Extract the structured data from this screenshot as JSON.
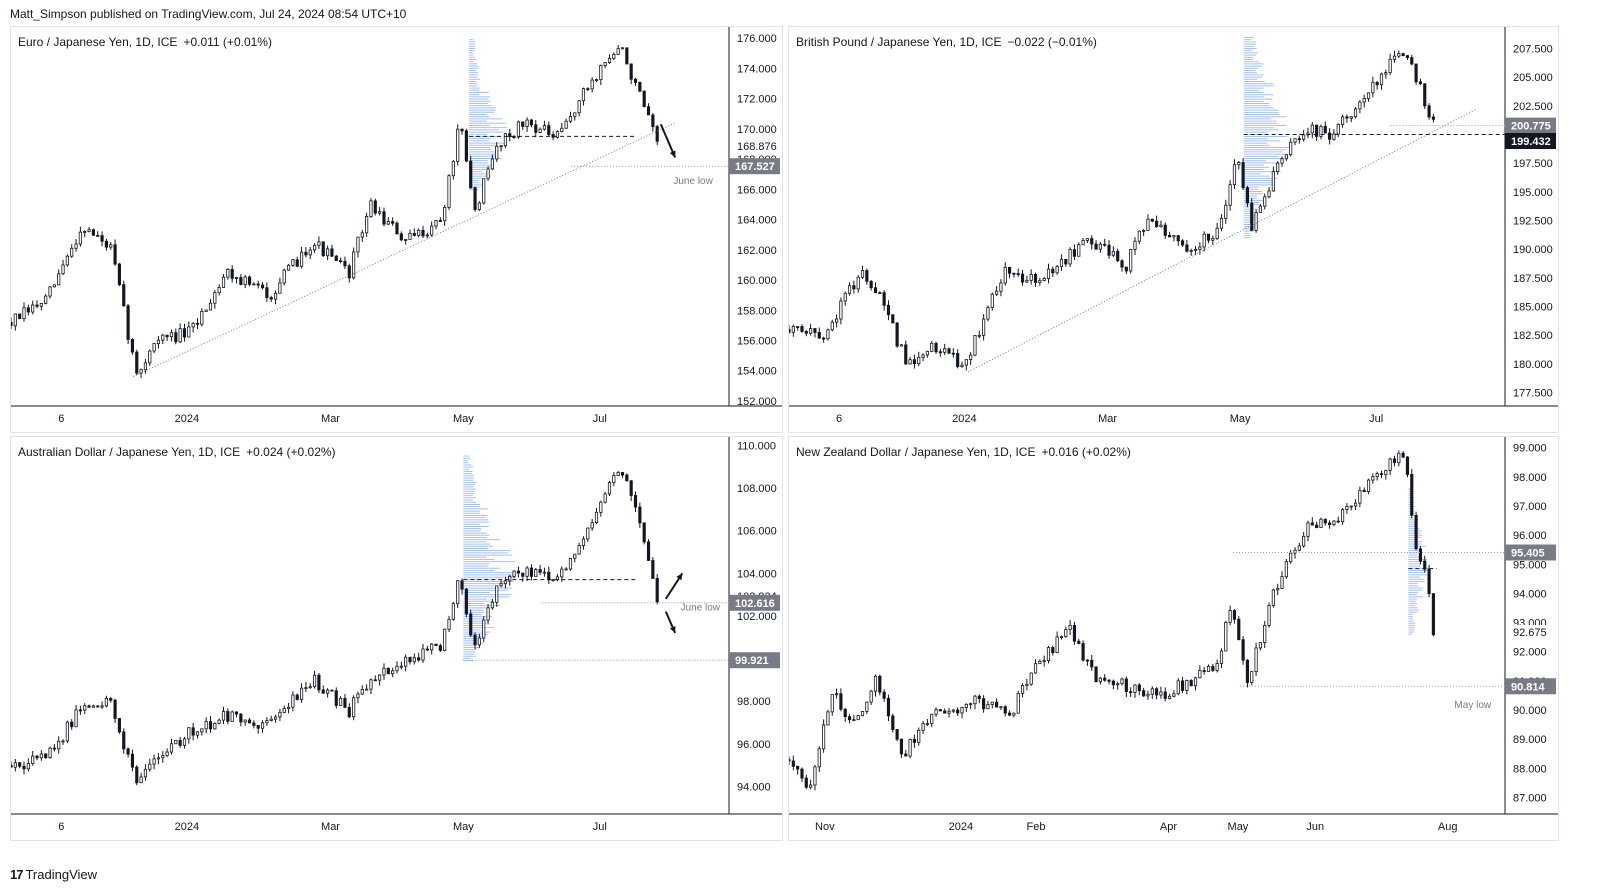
{
  "header": {
    "publisher_line": "Matt_Simpson published on TradingView.com, Jul 24, 2024 08:54 UTC+10"
  },
  "footer": {
    "brand": "TradingView",
    "logo_glyph": "17"
  },
  "colors": {
    "candle": "#131722",
    "volume_profile": "#5b8def",
    "axis_line": "#131722",
    "label_bg_gray": "#787b86",
    "label_bg_black": "#131722",
    "annotation_text": "#787b86"
  },
  "chart_data": [
    {
      "id": "eurjpy",
      "type": "candlestick",
      "title": "Euro / Japanese Yen, 1D, ICE",
      "change": "+0.011 (+0.01%)",
      "ylim": [
        151.8,
        176.6
      ],
      "y_ticks": [
        "176.000",
        "174.000",
        "172.000",
        "170.000",
        "168.000",
        "166.000",
        "164.000",
        "162.000",
        "160.000",
        "158.000",
        "156.000",
        "154.000",
        "152.000"
      ],
      "x_ticks": [
        {
          "label": "6",
          "t": 0.07
        },
        {
          "label": "2024",
          "t": 0.245
        },
        {
          "label": "Mar",
          "t": 0.445
        },
        {
          "label": "May",
          "t": 0.63
        },
        {
          "label": "Jul",
          "t": 0.82
        }
      ],
      "series_path": [
        [
          0,
          157.2
        ],
        [
          0.05,
          158.7
        ],
        [
          0.1,
          163.6
        ],
        [
          0.14,
          162.0
        ],
        [
          0.175,
          153.6
        ],
        [
          0.2,
          156.0
        ],
        [
          0.25,
          156.5
        ],
        [
          0.3,
          160.6
        ],
        [
          0.36,
          159.0
        ],
        [
          0.42,
          162.6
        ],
        [
          0.47,
          160.4
        ],
        [
          0.5,
          165.0
        ],
        [
          0.55,
          162.5
        ],
        [
          0.6,
          164.0
        ],
        [
          0.625,
          170.4
        ],
        [
          0.645,
          164.5
        ],
        [
          0.68,
          169.2
        ],
        [
          0.72,
          170.5
        ],
        [
          0.76,
          169.3
        ],
        [
          0.8,
          172.5
        ],
        [
          0.83,
          174.6
        ],
        [
          0.85,
          175.3
        ],
        [
          0.88,
          171.6
        ],
        [
          0.9,
          168.9
        ]
      ],
      "volume_profile": {
        "price_from": 166.0,
        "price_to": 176.0,
        "peak_price": 169.5,
        "t": 0.638,
        "max_width": 0.055
      },
      "trendline": {
        "from": [
          0.17,
          153.6
        ],
        "to": [
          0.925,
          170.4
        ]
      },
      "poc_line": {
        "price": 169.5,
        "t_from": 0.638,
        "t_to": 0.87
      },
      "level_lines": [
        {
          "price": 167.527,
          "t_from": 0.78,
          "t_to": 1.0,
          "style": "dotted"
        }
      ],
      "arrows": [
        {
          "from": [
            0.905,
            170.3
          ],
          "to": [
            0.925,
            168.1
          ]
        }
      ],
      "annotations": [
        {
          "text": "June low",
          "t": 0.95,
          "price": 166.6
        }
      ],
      "price_labels": [
        {
          "text": "168.876",
          "price": 168.876,
          "style": "plain"
        },
        {
          "text": "167.527",
          "price": 167.527,
          "style": "gray"
        }
      ]
    },
    {
      "id": "gbpjpy",
      "type": "candlestick",
      "title": "British Pound / Japanese Yen, 1D, ICE",
      "change": "−0.022 (−0.01%)",
      "ylim": [
        176.5,
        209.2
      ],
      "y_ticks": [
        "207.500",
        "205.000",
        "202.500",
        "200.000",
        "197.500",
        "195.000",
        "192.500",
        "190.000",
        "187.500",
        "185.000",
        "182.500",
        "180.000",
        "177.500"
      ],
      "x_ticks": [
        {
          "label": "6",
          "t": 0.07
        },
        {
          "label": "2024",
          "t": 0.245
        },
        {
          "label": "Mar",
          "t": 0.445
        },
        {
          "label": "May",
          "t": 0.63
        },
        {
          "label": "Jul",
          "t": 0.82
        }
      ],
      "series_path": [
        [
          0,
          183.0
        ],
        [
          0.05,
          182.5
        ],
        [
          0.08,
          186.0
        ],
        [
          0.1,
          188.0
        ],
        [
          0.13,
          185.5
        ],
        [
          0.165,
          179.8
        ],
        [
          0.2,
          181.5
        ],
        [
          0.245,
          180.0
        ],
        [
          0.3,
          188.0
        ],
        [
          0.35,
          187.0
        ],
        [
          0.42,
          191.0
        ],
        [
          0.47,
          188.5
        ],
        [
          0.5,
          192.5
        ],
        [
          0.55,
          190.0
        ],
        [
          0.6,
          191.5
        ],
        [
          0.625,
          198.5
        ],
        [
          0.645,
          192.0
        ],
        [
          0.68,
          197.0
        ],
        [
          0.72,
          200.5
        ],
        [
          0.76,
          200.0
        ],
        [
          0.8,
          203.0
        ],
        [
          0.84,
          206.5
        ],
        [
          0.86,
          207.5
        ],
        [
          0.885,
          203.5
        ],
        [
          0.9,
          200.8
        ]
      ],
      "volume_profile": {
        "price_from": 191.0,
        "price_to": 208.5,
        "peak_price": 200.0,
        "t": 0.635,
        "max_width": 0.07
      },
      "trendline": {
        "from": [
          0.25,
          179.3
        ],
        "to": [
          0.96,
          202.2
        ]
      },
      "poc_line": {
        "price": 200.0,
        "t_from": 0.635,
        "t_to": 1.0
      },
      "level_lines": [
        {
          "price": 200.775,
          "t_from": 0.84,
          "t_to": 1.0,
          "style": "dotted"
        }
      ],
      "arrows": [],
      "annotations": [],
      "price_labels": [
        {
          "text": "200.775",
          "price": 200.775,
          "style": "gray"
        },
        {
          "text": "199.432",
          "price": 199.432,
          "style": "black"
        }
      ]
    },
    {
      "id": "audjpy",
      "type": "candlestick",
      "title": "Australian Dollar / Japanese Yen, 1D, ICE",
      "change": "+0.024 (+0.02%)",
      "ylim": [
        92.8,
        110.3
      ],
      "y_ticks": [
        "110.000",
        "108.000",
        "106.000",
        "104.000",
        "102.000",
        "100.000",
        "98.000",
        "96.000",
        "94.000"
      ],
      "x_ticks": [
        {
          "label": "6",
          "t": 0.07
        },
        {
          "label": "2024",
          "t": 0.245
        },
        {
          "label": "Mar",
          "t": 0.445
        },
        {
          "label": "May",
          "t": 0.63
        },
        {
          "label": "Jul",
          "t": 0.82
        }
      ],
      "series_path": [
        [
          0,
          95.0
        ],
        [
          0.05,
          95.3
        ],
        [
          0.1,
          97.8
        ],
        [
          0.14,
          98.0
        ],
        [
          0.175,
          94.0
        ],
        [
          0.2,
          95.5
        ],
        [
          0.25,
          96.5
        ],
        [
          0.3,
          97.3
        ],
        [
          0.36,
          96.8
        ],
        [
          0.42,
          99.0
        ],
        [
          0.47,
          97.5
        ],
        [
          0.5,
          99.0
        ],
        [
          0.55,
          99.8
        ],
        [
          0.6,
          100.6
        ],
        [
          0.625,
          104.0
        ],
        [
          0.645,
          100.5
        ],
        [
          0.68,
          103.5
        ],
        [
          0.72,
          104.2
        ],
        [
          0.76,
          103.5
        ],
        [
          0.8,
          106.0
        ],
        [
          0.83,
          108.0
        ],
        [
          0.85,
          109.0
        ],
        [
          0.88,
          106.0
        ],
        [
          0.9,
          102.9
        ]
      ],
      "volume_profile": {
        "price_from": 99.9,
        "price_to": 109.5,
        "peak_price": 104.0,
        "t": 0.63,
        "max_width": 0.075
      },
      "trendline": null,
      "poc_line": {
        "price": 103.7,
        "t_from": 0.63,
        "t_to": 0.87
      },
      "level_lines": [
        {
          "price": 102.616,
          "t_from": 0.74,
          "t_to": 1.0,
          "style": "dotted"
        },
        {
          "price": 99.921,
          "t_from": 0.63,
          "t_to": 1.0,
          "style": "dotted"
        }
      ],
      "arrows": [
        {
          "from": [
            0.912,
            102.8
          ],
          "to": [
            0.935,
            104.0
          ]
        },
        {
          "from": [
            0.912,
            102.2
          ],
          "to": [
            0.925,
            101.2
          ]
        }
      ],
      "annotations": [
        {
          "text": "June low",
          "t": 0.96,
          "price": 102.45
        }
      ],
      "price_labels": [
        {
          "text": "102.934",
          "price": 102.934,
          "style": "plain"
        },
        {
          "text": "102.616",
          "price": 102.616,
          "style": "gray"
        },
        {
          "text": "99.921",
          "price": 99.921,
          "style": "gray"
        }
      ]
    },
    {
      "id": "nzdjpy",
      "type": "candlestick",
      "title": "New Zealand Dollar / Japanese Yen, 1D, ICE",
      "change": "+0.016 (+0.02%)",
      "ylim": [
        86.5,
        99.3
      ],
      "y_ticks": [
        "99.000",
        "98.000",
        "97.000",
        "96.000",
        "95.000",
        "94.000",
        "93.000",
        "92.000",
        "91.000",
        "90.000",
        "89.000",
        "88.000",
        "87.000"
      ],
      "x_ticks": [
        {
          "label": "Nov",
          "t": 0.05
        },
        {
          "label": "2024",
          "t": 0.24
        },
        {
          "label": "Feb",
          "t": 0.345
        },
        {
          "label": "Apr",
          "t": 0.53
        },
        {
          "label": "May",
          "t": 0.627
        },
        {
          "label": "Jun",
          "t": 0.735
        },
        {
          "label": "Aug",
          "t": 0.92
        }
      ],
      "series_path": [
        [
          0,
          88.3
        ],
        [
          0.03,
          87.2
        ],
        [
          0.06,
          90.6
        ],
        [
          0.09,
          89.5
        ],
        [
          0.12,
          91.0
        ],
        [
          0.16,
          88.5
        ],
        [
          0.2,
          89.8
        ],
        [
          0.26,
          90.3
        ],
        [
          0.31,
          89.9
        ],
        [
          0.34,
          91.3
        ],
        [
          0.39,
          92.8
        ],
        [
          0.43,
          91.0
        ],
        [
          0.48,
          90.8
        ],
        [
          0.52,
          90.5
        ],
        [
          0.56,
          91.0
        ],
        [
          0.6,
          91.6
        ],
        [
          0.615,
          93.7
        ],
        [
          0.64,
          91.0
        ],
        [
          0.68,
          94.2
        ],
        [
          0.72,
          96.2
        ],
        [
          0.76,
          96.5
        ],
        [
          0.8,
          97.5
        ],
        [
          0.84,
          98.5
        ],
        [
          0.86,
          98.8
        ],
        [
          0.875,
          95.5
        ],
        [
          0.89,
          94.8
        ],
        [
          0.9,
          92.7
        ]
      ],
      "volume_profile": {
        "price_from": 92.6,
        "price_to": 97.6,
        "peak_price": 94.9,
        "t": 0.865,
        "max_width": 0.03
      },
      "trendline": null,
      "poc_line": {
        "price": 94.85,
        "t_from": 0.865,
        "t_to": 0.905
      },
      "level_lines": [
        {
          "price": 95.405,
          "t_from": 0.62,
          "t_to": 1.0,
          "style": "dotted"
        },
        {
          "price": 90.814,
          "t_from": 0.63,
          "t_to": 1.0,
          "style": "dotted"
        }
      ],
      "arrows": [],
      "annotations": [
        {
          "text": "May low",
          "t": 0.955,
          "price": 90.2
        }
      ],
      "price_labels": [
        {
          "text": "95.405",
          "price": 95.405,
          "style": "gray"
        },
        {
          "text": "92.675",
          "price": 92.675,
          "style": "plain"
        },
        {
          "text": "90.814",
          "price": 90.814,
          "style": "gray"
        }
      ]
    }
  ]
}
